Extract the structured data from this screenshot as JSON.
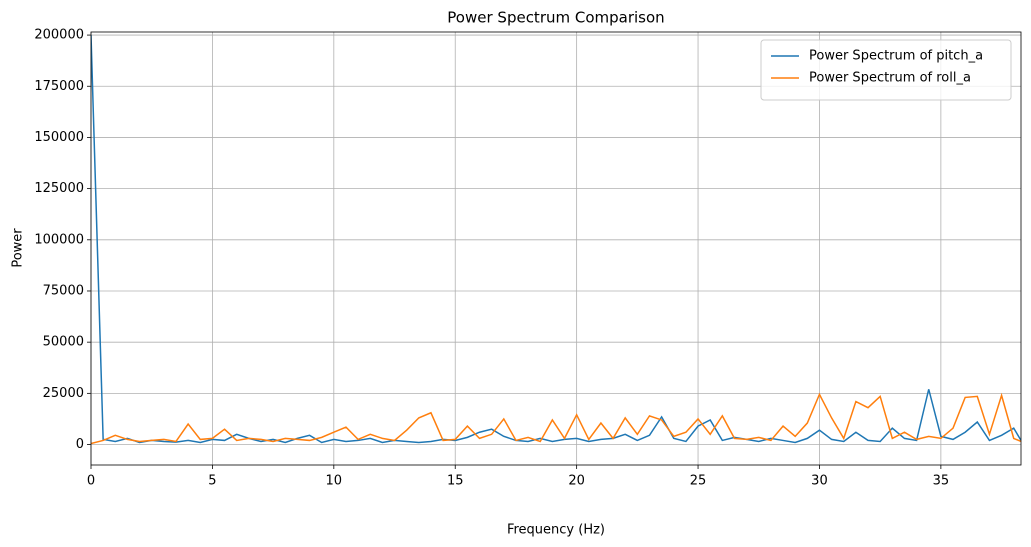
{
  "chart_data": {
    "type": "line",
    "title": "Power Spectrum Comparison",
    "x_label": "Frequency (Hz)",
    "y_label": "Power",
    "x": [
      0,
      0.5,
      1,
      1.5,
      2,
      2.5,
      3,
      3.5,
      4,
      4.5,
      5,
      5.5,
      6,
      6.5,
      7,
      7.5,
      8,
      8.5,
      9,
      9.5,
      10,
      10.5,
      11,
      11.5,
      12,
      12.5,
      13,
      13.5,
      14,
      14.5,
      15,
      15.5,
      16,
      16.5,
      17,
      17.5,
      18,
      18.5,
      19,
      19.5,
      20,
      20.5,
      21,
      21.5,
      22,
      22.5,
      23,
      23.5,
      24,
      24.5,
      25,
      25.5,
      26,
      26.5,
      27,
      27.5,
      28,
      28.5,
      29,
      29.5,
      30,
      30.5,
      31,
      31.5,
      32,
      32.5,
      33,
      33.5,
      34,
      34.5,
      35,
      35.5,
      36,
      36.5,
      37,
      37.5,
      38,
      38.3
    ],
    "series": [
      {
        "name": "Power Spectrum of pitch_a",
        "color": "#1f77b4",
        "values": [
          200000,
          2500,
          1500,
          3000,
          1000,
          2000,
          1500,
          1200,
          2000,
          1000,
          2500,
          2000,
          5000,
          3000,
          1500,
          2500,
          1000,
          3000,
          4500,
          1000,
          2500,
          1500,
          2000,
          3000,
          1000,
          2000,
          1500,
          1000,
          1500,
          2500,
          2000,
          3500,
          6000,
          7500,
          4000,
          2000,
          1500,
          3000,
          1500,
          2500,
          3000,
          1500,
          2500,
          3000,
          5000,
          2000,
          4500,
          13500,
          3000,
          1500,
          9000,
          12000,
          2000,
          3500,
          2500,
          1500,
          3000,
          2000,
          1000,
          3000,
          7000,
          2500,
          1500,
          6000,
          2000,
          1500,
          8000,
          3000,
          2000,
          27000,
          4000,
          2500,
          6000,
          11000,
          2000,
          4500,
          8000,
          2000
        ]
      },
      {
        "name": "Power Spectrum of roll_a",
        "color": "#ff7f0e",
        "values": [
          500,
          2000,
          4500,
          2500,
          1500,
          2000,
          2500,
          1500,
          10000,
          2500,
          3000,
          7500,
          2000,
          3000,
          2500,
          1500,
          3000,
          2500,
          2000,
          3500,
          6000,
          8500,
          2500,
          5000,
          3000,
          2000,
          7000,
          13000,
          15500,
          2000,
          2500,
          9000,
          3000,
          5000,
          12500,
          2000,
          3500,
          1500,
          12000,
          3000,
          14500,
          2500,
          10500,
          3000,
          13000,
          5000,
          14000,
          12000,
          4000,
          6000,
          12500,
          5000,
          14000,
          3000,
          2500,
          3500,
          2000,
          9000,
          4000,
          10500,
          24500,
          13000,
          3000,
          21000,
          18000,
          23500,
          3000,
          6000,
          2500,
          4000,
          3000,
          8000,
          23000,
          23500,
          5000,
          24000,
          3000,
          1500
        ]
      }
    ],
    "xlim": [
      0,
      38.3
    ],
    "ylim": [
      -10000,
      201500
    ],
    "xticks": [
      0,
      5,
      10,
      15,
      20,
      25,
      30,
      35
    ],
    "yticks": [
      0,
      25000,
      50000,
      75000,
      100000,
      125000,
      150000,
      175000,
      200000
    ],
    "grid": true,
    "legend": "upper right"
  }
}
